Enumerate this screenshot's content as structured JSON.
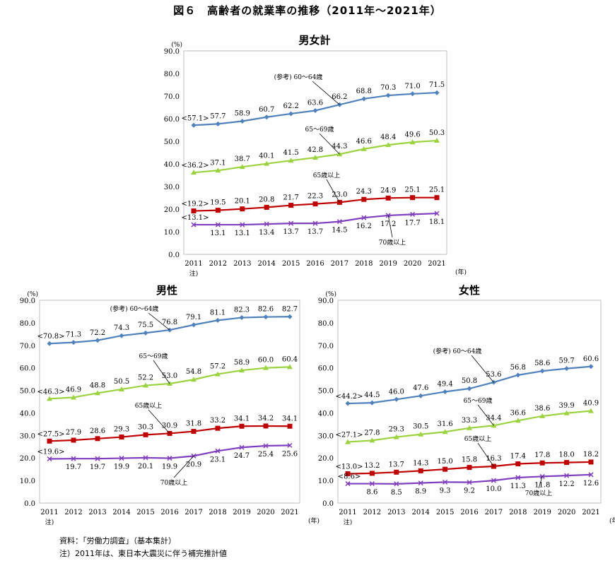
{
  "figure_title": "図６　高齢者の就業率の推移（2011年～2021年）",
  "source_note": "資料：「労働力調査」（基本集計）",
  "footnote": "注）2011年は、東日本大震災に伴う補完推計値",
  "colors": {
    "s60_64": "#4F81BD",
    "s65_69": "#9BD33F",
    "s65plus": "#C00000",
    "s70plus": "#7F3FBF"
  },
  "chart_data": [
    {
      "id": "total",
      "type": "line",
      "title": "男女計",
      "ylabel": "(%)",
      "xunit": "(年)",
      "x_note": "注)",
      "ylim": [
        0,
        90
      ],
      "y_ticks": [
        "0.0",
        "10.0",
        "20.0",
        "30.0",
        "40.0",
        "50.0",
        "60.0",
        "70.0",
        "80.0",
        "90.0"
      ],
      "categories": [
        "2011",
        "2012",
        "2013",
        "2014",
        "2015",
        "2016",
        "2017",
        "2018",
        "2019",
        "2020",
        "2021"
      ],
      "first_labels": [
        "<57.1>",
        "<36.2>",
        "<19.2>",
        "<13.1>"
      ],
      "series": [
        {
          "name": "(参考) 60～64歳",
          "values": [
            57.1,
            57.7,
            58.9,
            60.7,
            62.2,
            63.6,
            66.2,
            68.8,
            70.3,
            71.0,
            71.5
          ]
        },
        {
          "name": "65～69歳",
          "values": [
            36.2,
            37.1,
            38.7,
            40.1,
            41.5,
            42.8,
            44.3,
            46.6,
            48.4,
            49.6,
            50.3
          ]
        },
        {
          "name": "65歳以上",
          "values": [
            19.2,
            19.5,
            20.1,
            20.8,
            21.7,
            22.3,
            23.0,
            24.3,
            24.9,
            25.1,
            25.1
          ]
        },
        {
          "name": "70歳以上",
          "values": [
            13.1,
            13.1,
            13.1,
            13.4,
            13.7,
            13.7,
            14.5,
            16.2,
            17.2,
            17.7,
            18.1
          ]
        }
      ]
    },
    {
      "id": "male",
      "type": "line",
      "title": "男性",
      "ylabel": "(%)",
      "xunit": "(年)",
      "x_note": "注)",
      "ylim": [
        0,
        90
      ],
      "y_ticks": [
        "0.0",
        "10.0",
        "20.0",
        "30.0",
        "40.0",
        "50.0",
        "60.0",
        "70.0",
        "80.0",
        "90.0"
      ],
      "categories": [
        "2011",
        "2012",
        "2013",
        "2014",
        "2015",
        "2016",
        "2017",
        "2018",
        "2019",
        "2020",
        "2021"
      ],
      "first_labels": [
        "<70.8>",
        "<46.3>",
        "<27.5>",
        "<19.6>"
      ],
      "series": [
        {
          "name": "(参考) 60～64歳",
          "values": [
            70.8,
            71.3,
            72.2,
            74.3,
            75.5,
            76.8,
            79.1,
            81.1,
            82.3,
            82.6,
            82.7
          ]
        },
        {
          "name": "65～69歳",
          "values": [
            46.3,
            46.9,
            48.8,
            50.5,
            52.2,
            53.0,
            54.8,
            57.2,
            58.9,
            60.0,
            60.4
          ]
        },
        {
          "name": "65歳以上",
          "values": [
            27.5,
            27.9,
            28.6,
            29.3,
            30.3,
            30.9,
            31.8,
            33.2,
            34.1,
            34.2,
            34.1
          ]
        },
        {
          "name": "70歳以上",
          "values": [
            19.6,
            19.7,
            19.7,
            19.9,
            20.1,
            19.9,
            20.9,
            23.1,
            24.7,
            25.4,
            25.6
          ]
        }
      ]
    },
    {
      "id": "female",
      "type": "line",
      "title": "女性",
      "ylabel": "(%)",
      "xunit": "(年)",
      "x_note": "注)",
      "ylim": [
        0,
        90
      ],
      "y_ticks": [
        "0.0",
        "10.0",
        "20.0",
        "30.0",
        "40.0",
        "50.0",
        "60.0",
        "70.0",
        "80.0",
        "90.0"
      ],
      "categories": [
        "2011",
        "2012",
        "2013",
        "2014",
        "2015",
        "2016",
        "2017",
        "2018",
        "2019",
        "2020",
        "2021"
      ],
      "first_labels": [
        "<44.2>",
        "<27.1>",
        "<13.0>",
        "<8.6>"
      ],
      "series": [
        {
          "name": "(参考) 60～64歳",
          "values": [
            44.2,
            44.5,
            46.0,
            47.6,
            49.4,
            50.8,
            53.6,
            56.8,
            58.6,
            59.7,
            60.6
          ]
        },
        {
          "name": "65～69歳",
          "values": [
            27.1,
            27.8,
            29.3,
            30.5,
            31.6,
            33.3,
            34.4,
            36.6,
            38.6,
            39.9,
            40.9
          ]
        },
        {
          "name": "65歳以上",
          "values": [
            13.0,
            13.2,
            13.7,
            14.3,
            15.0,
            15.8,
            16.3,
            17.4,
            17.8,
            18.0,
            18.2
          ]
        },
        {
          "name": "70歳以上",
          "values": [
            8.6,
            8.6,
            8.5,
            8.9,
            9.3,
            9.2,
            10.0,
            11.3,
            11.8,
            12.2,
            12.6
          ]
        }
      ]
    }
  ]
}
